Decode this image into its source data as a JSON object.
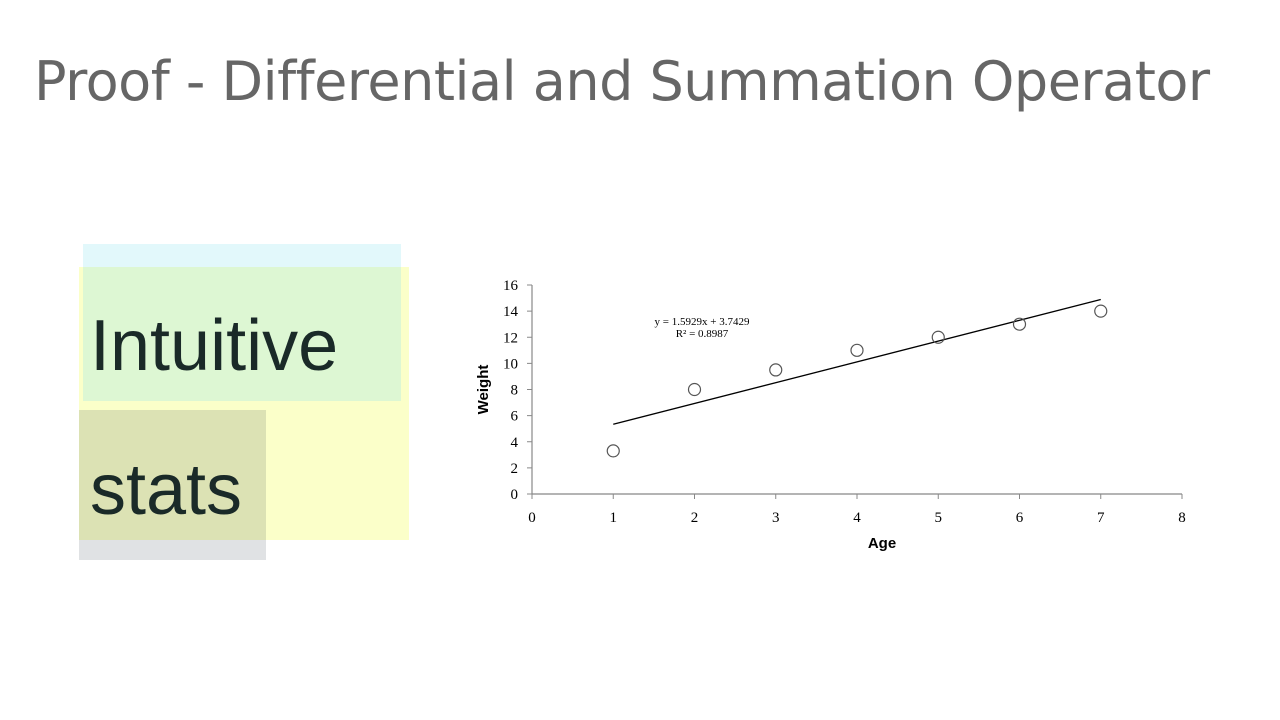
{
  "slide": {
    "title": "Proof - Differential and Summation Operator"
  },
  "logo": {
    "word1": "Intuitive",
    "word2": "stats",
    "colors": {
      "cyan": "#e2f8fb",
      "green": "#ddf7d3",
      "yellow": "#fbffc9",
      "olive": "#dce2b4",
      "gray": "#e0e2e4"
    }
  },
  "chart_data": {
    "type": "scatter",
    "xlabel": "Age",
    "ylabel": "Weight",
    "xlim": [
      0,
      8
    ],
    "ylim": [
      0,
      16
    ],
    "x_ticks": [
      "0",
      "1",
      "2",
      "3",
      "4",
      "5",
      "6",
      "7",
      "8"
    ],
    "y_ticks": [
      "0",
      "2",
      "4",
      "6",
      "8",
      "10",
      "12",
      "14",
      "16"
    ],
    "points": [
      {
        "x": 1,
        "y": 3.3
      },
      {
        "x": 2,
        "y": 8
      },
      {
        "x": 3,
        "y": 9.5
      },
      {
        "x": 4,
        "y": 11
      },
      {
        "x": 5,
        "y": 12
      },
      {
        "x": 6,
        "y": 13
      },
      {
        "x": 7,
        "y": 14
      }
    ],
    "trendline": {
      "slope": 1.5929,
      "intercept": 3.7429,
      "x_from": 1,
      "x_to": 7
    },
    "equation": "y = 1.5929x + 3.7429",
    "r_squared": "R² = 0.8987",
    "grid": false,
    "legend": "none"
  }
}
